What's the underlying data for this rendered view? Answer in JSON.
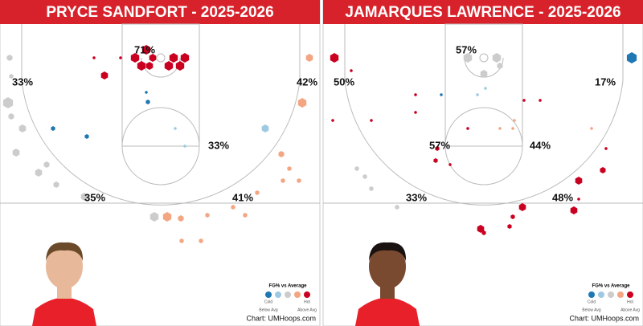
{
  "panels": [
    {
      "title": "PRYCE SANDFORT - 2025-2026",
      "zones": [
        "71%",
        "33%",
        "42%",
        "33%",
        "35%",
        "41%"
      ],
      "legend": {
        "title": "FG% vs Average",
        "cold": "Cold",
        "hot": "Hot",
        "below": "Below Avg",
        "above": "Above Avg"
      },
      "credit": "Chart: UMHoops.com"
    },
    {
      "title": "JAMARQUES LAWRENCE - 2025-2026",
      "zones": [
        "57%",
        "50%",
        "17%",
        "57%",
        "44%",
        "33%",
        "48%"
      ],
      "legend": {
        "title": "FG% vs Average",
        "cold": "Cold",
        "hot": "Hot",
        "below": "Below Avg",
        "above": "Above Avg"
      },
      "credit": "Chart: UMHoops.com"
    }
  ]
}
